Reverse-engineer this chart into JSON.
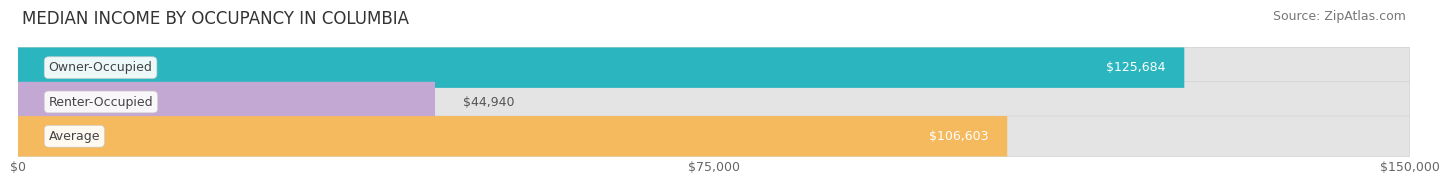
{
  "title": "MEDIAN INCOME BY OCCUPANCY IN COLUMBIA",
  "source": "Source: ZipAtlas.com",
  "categories": [
    "Owner-Occupied",
    "Renter-Occupied",
    "Average"
  ],
  "values": [
    125684,
    44940,
    106603
  ],
  "bar_colors": [
    "#2ab5bf",
    "#c4a8d4",
    "#f5b95e"
  ],
  "bar_labels": [
    "$125,684",
    "$44,940",
    "$106,603"
  ],
  "xlim": [
    0,
    150000
  ],
  "xticks": [
    0,
    75000,
    150000
  ],
  "xtick_labels": [
    "$0",
    "$75,000",
    "$150,000"
  ],
  "fig_bg_color": "#ffffff",
  "plot_bg_color": "#f7f7f7",
  "bar_bg_color": "#e8e8e8",
  "bar_border_color": "#d8d8d8",
  "title_fontsize": 12,
  "label_fontsize": 9,
  "tick_fontsize": 9,
  "source_fontsize": 9,
  "bar_height": 0.62,
  "value_label_color_inside": "#ffffff",
  "value_label_color_outside": "#555555",
  "category_label_color": "#444444"
}
